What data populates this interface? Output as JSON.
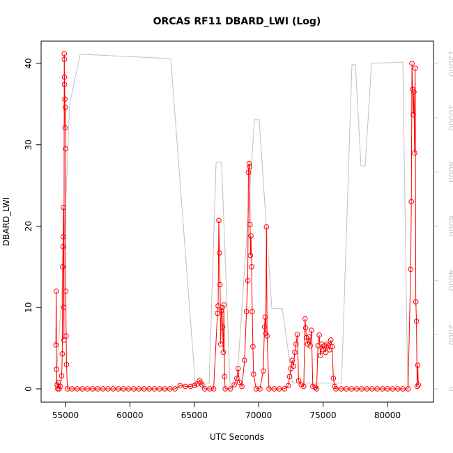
{
  "chart_data": {
    "type": "line",
    "title": "ORCAS RF11 DBARD_LWI (Log)",
    "x_label": "UTC Seconds",
    "y_label": "DBARD_LWI",
    "xlim": [
      53106,
      83571
    ],
    "xticks": [
      55000,
      60000,
      65000,
      70000,
      75000,
      80000
    ],
    "ylim": [
      -1.63,
      42.74
    ],
    "yticks": [
      0,
      10,
      20,
      30,
      40
    ],
    "y2lim": [
      -490,
      12822
    ],
    "y2ticks": [
      0,
      2000,
      4000,
      6000,
      8000,
      10000,
      12000
    ],
    "y2_color": "#c8c8c8",
    "series": [
      {
        "color": "#c0c0c0",
        "axis": "y2",
        "markers": false,
        "x": [
          54240,
          54780,
          55320,
          56140,
          58300,
          63170,
          65070,
          66150,
          66690,
          67120,
          67770,
          68310,
          69670,
          70040,
          71020,
          71830,
          72640,
          76430,
          77240,
          77510,
          77940,
          78270,
          78760,
          81190,
          81570
        ],
        "values": [
          80,
          4060,
          10490,
          12340,
          12290,
          12180,
          210,
          210,
          8350,
          8350,
          210,
          210,
          9920,
          9920,
          2960,
          2960,
          210,
          210,
          11950,
          11950,
          8220,
          8220,
          12000,
          12050,
          80
        ]
      },
      {
        "name": "DBARD_LWI",
        "color": "#ff0000",
        "axis": "y",
        "markers": true,
        "x": [
          54250,
          54280,
          54300,
          54350,
          54400,
          54450,
          54500,
          54600,
          54700,
          54750,
          54780,
          54800,
          54820,
          54840,
          54860,
          54880,
          54900,
          54910,
          54920,
          54930,
          54950,
          54960,
          54980,
          55000,
          55020,
          55050,
          55080,
          55150,
          55500,
          55900,
          56300,
          56700,
          57100,
          57500,
          57900,
          58300,
          58700,
          59100,
          59500,
          59900,
          60300,
          60700,
          61100,
          61500,
          61900,
          62300,
          62700,
          63100,
          63500,
          63900,
          64300,
          64700,
          65000,
          65200,
          65400,
          65500,
          65600,
          65800,
          66200,
          66500,
          66800,
          66850,
          66900,
          66950,
          67000,
          67050,
          67100,
          67150,
          67200,
          67250,
          67300,
          67350,
          67400,
          67800,
          68100,
          68300,
          68400,
          68500,
          68700,
          68900,
          69050,
          69150,
          69200,
          69250,
          69300,
          69330,
          69360,
          69400,
          69450,
          69500,
          69550,
          69600,
          69800,
          70100,
          70350,
          70450,
          70500,
          70550,
          70600,
          70650,
          70800,
          71200,
          71600,
          72000,
          72300,
          72400,
          72500,
          72600,
          72700,
          72800,
          72900,
          73000,
          73100,
          73300,
          73500,
          73600,
          73650,
          73700,
          73800,
          73900,
          74000,
          74100,
          74200,
          74400,
          74500,
          74600,
          74700,
          74800,
          74900,
          75000,
          75100,
          75200,
          75300,
          75400,
          75500,
          75600,
          75700,
          75800,
          75900,
          76000,
          76400,
          76800,
          77200,
          77600,
          78000,
          78400,
          78800,
          79200,
          79600,
          80000,
          80400,
          80800,
          81200,
          81600,
          81800,
          81850,
          81900,
          81950,
          82000,
          82050,
          82100,
          82150,
          82200,
          82250,
          82300,
          82350,
          82400
        ],
        "values": [
          5.4,
          12,
          2.4,
          0.5,
          0,
          0.8,
          0,
          0.3,
          1.6,
          4.3,
          15,
          17.5,
          18.7,
          22.3,
          10,
          6,
          41.2,
          40.5,
          38.3,
          37.4,
          35.6,
          32.1,
          34.6,
          29.5,
          12,
          6.5,
          3,
          0,
          0,
          0,
          0,
          0,
          0,
          0,
          0,
          0,
          0,
          0,
          0,
          0,
          0,
          0,
          0,
          0,
          0,
          0,
          0,
          0,
          0,
          0.4,
          0.3,
          0.3,
          0.4,
          0.6,
          1.0,
          0.8,
          0.5,
          0,
          0,
          0,
          9.3,
          10.2,
          20.7,
          16.7,
          12.8,
          5.5,
          9.6,
          10,
          7.6,
          4.5,
          10.3,
          1.5,
          0,
          0,
          0.5,
          1.3,
          2.5,
          0.8,
          0.3,
          3.5,
          9.5,
          13.3,
          26.6,
          27.7,
          27.3,
          20.2,
          16.4,
          18.8,
          15,
          9.5,
          5.2,
          1.8,
          0,
          0,
          2.2,
          7.6,
          8.8,
          6.8,
          19.9,
          6.5,
          0,
          0,
          0,
          0,
          0.4,
          1.5,
          2.5,
          3.5,
          2.8,
          4.5,
          5.5,
          6.7,
          1.0,
          0.5,
          0.3,
          8.6,
          7.5,
          6.3,
          5.5,
          6.4,
          5.3,
          7.2,
          0.3,
          0.2,
          0,
          5.3,
          6.6,
          4.1,
          5.5,
          4.8,
          5.3,
          4.5,
          5.5,
          5.3,
          4.8,
          6.0,
          5.2,
          1.3,
          0.3,
          0,
          0,
          0,
          0,
          0,
          0,
          0,
          0,
          0,
          0,
          0,
          0,
          0,
          0,
          0,
          14.7,
          23,
          40,
          36.8,
          33.7,
          36.5,
          29,
          39.4,
          10.7,
          8.3,
          0.3,
          2.9,
          0.5
        ]
      }
    ]
  }
}
